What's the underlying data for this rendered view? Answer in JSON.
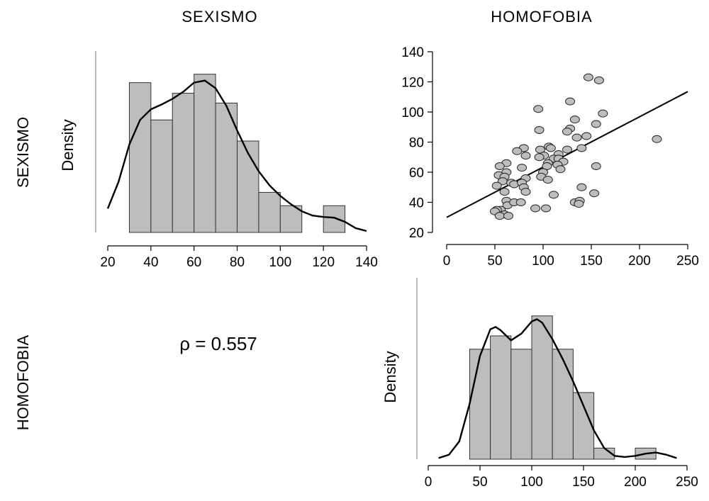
{
  "titles": {
    "col1": "SEXISMO",
    "col2": "HOMOFOBIA",
    "row1": "SEXISMO",
    "row2": "HOMOFOBIA"
  },
  "correlation_label": "ρ = 0.557",
  "chart_data": [
    {
      "type": "histogram",
      "panel": "top-left",
      "variable": "SEXISMO",
      "ylabel": "Density",
      "xlim": [
        20,
        140
      ],
      "xticks": [
        20,
        40,
        60,
        80,
        100,
        120,
        140
      ],
      "bins": [
        {
          "x0": 30,
          "x1": 40,
          "density": 0.0213
        },
        {
          "x0": 40,
          "x1": 50,
          "density": 0.016
        },
        {
          "x0": 50,
          "x1": 60,
          "density": 0.0198
        },
        {
          "x0": 60,
          "x1": 70,
          "density": 0.0225
        },
        {
          "x0": 70,
          "x1": 80,
          "density": 0.0184
        },
        {
          "x0": 80,
          "x1": 90,
          "density": 0.013
        },
        {
          "x0": 90,
          "x1": 100,
          "density": 0.0057
        },
        {
          "x0": 100,
          "x1": 110,
          "density": 0.0038
        },
        {
          "x0": 110,
          "x1": 120,
          "density": 0.0
        },
        {
          "x0": 120,
          "x1": 130,
          "density": 0.0038
        }
      ],
      "ylim": [
        0,
        0.026
      ],
      "density_curve": [
        [
          20,
          0.0034
        ],
        [
          25,
          0.0072
        ],
        [
          30,
          0.0125
        ],
        [
          35,
          0.016
        ],
        [
          40,
          0.0175
        ],
        [
          45,
          0.0182
        ],
        [
          50,
          0.019
        ],
        [
          55,
          0.02
        ],
        [
          60,
          0.0213
        ],
        [
          65,
          0.0216
        ],
        [
          70,
          0.0205
        ],
        [
          75,
          0.018
        ],
        [
          80,
          0.0145
        ],
        [
          85,
          0.0113
        ],
        [
          90,
          0.0087
        ],
        [
          95,
          0.0067
        ],
        [
          100,
          0.0052
        ],
        [
          105,
          0.004
        ],
        [
          110,
          0.003
        ],
        [
          115,
          0.0024
        ],
        [
          120,
          0.0022
        ],
        [
          125,
          0.0021
        ],
        [
          130,
          0.0015
        ],
        [
          135,
          0.0006
        ],
        [
          140,
          0.0002
        ]
      ]
    },
    {
      "type": "scatter",
      "panel": "top-right",
      "x_variable": "HOMOFOBIA",
      "y_variable": "SEXISMO",
      "xlim": [
        0,
        250
      ],
      "ylim": [
        20,
        140
      ],
      "xticks": [
        0,
        50,
        100,
        150,
        200,
        250
      ],
      "yticks": [
        20,
        40,
        60,
        80,
        100,
        120,
        140
      ],
      "regression_line": {
        "intercept": 30,
        "slope": 0.334
      },
      "points": [
        [
          147,
          123
        ],
        [
          158,
          121
        ],
        [
          128,
          107
        ],
        [
          162,
          99
        ],
        [
          95,
          102
        ],
        [
          133,
          95
        ],
        [
          155,
          92
        ],
        [
          96,
          88
        ],
        [
          128,
          89
        ],
        [
          125,
          87
        ],
        [
          145,
          84
        ],
        [
          135,
          83
        ],
        [
          218,
          82
        ],
        [
          80,
          76
        ],
        [
          97,
          75
        ],
        [
          106,
          77
        ],
        [
          108,
          76
        ],
        [
          140,
          76
        ],
        [
          125,
          75
        ],
        [
          73,
          74
        ],
        [
          101,
          71
        ],
        [
          82,
          71
        ],
        [
          96,
          70
        ],
        [
          116,
          72
        ],
        [
          111,
          69
        ],
        [
          116,
          69
        ],
        [
          121,
          67
        ],
        [
          105,
          66
        ],
        [
          115,
          65
        ],
        [
          104,
          64
        ],
        [
          100,
          60
        ],
        [
          118,
          62
        ],
        [
          155,
          64
        ],
        [
          62,
          66
        ],
        [
          78,
          63
        ],
        [
          55,
          64
        ],
        [
          98,
          57
        ],
        [
          105,
          55
        ],
        [
          82,
          56
        ],
        [
          62,
          60
        ],
        [
          54,
          58
        ],
        [
          60,
          57
        ],
        [
          58,
          54
        ],
        [
          52,
          51
        ],
        [
          67,
          53
        ],
        [
          70,
          52
        ],
        [
          78,
          53
        ],
        [
          80,
          50
        ],
        [
          60,
          47
        ],
        [
          82,
          47
        ],
        [
          140,
          50
        ],
        [
          153,
          46
        ],
        [
          111,
          45
        ],
        [
          62,
          41
        ],
        [
          63,
          38
        ],
        [
          70,
          40
        ],
        [
          77,
          40
        ],
        [
          133,
          40
        ],
        [
          138,
          41
        ],
        [
          137,
          39
        ],
        [
          92,
          36
        ],
        [
          103,
          36
        ],
        [
          56,
          35
        ],
        [
          52,
          35
        ],
        [
          50,
          34
        ],
        [
          60,
          32
        ],
        [
          55,
          31
        ],
        [
          64,
          31
        ]
      ]
    },
    {
      "type": "histogram",
      "panel": "bottom-right",
      "variable": "HOMOFOBIA",
      "ylabel": "Density",
      "xlim": [
        0,
        250
      ],
      "xticks": [
        0,
        50,
        100,
        150,
        200,
        250
      ],
      "bins": [
        {
          "x0": 40,
          "x1": 60,
          "density": 0.0099
        },
        {
          "x0": 60,
          "x1": 80,
          "density": 0.0111
        },
        {
          "x0": 80,
          "x1": 100,
          "density": 0.0099
        },
        {
          "x0": 100,
          "x1": 120,
          "density": 0.0129
        },
        {
          "x0": 120,
          "x1": 140,
          "density": 0.0099
        },
        {
          "x0": 140,
          "x1": 160,
          "density": 0.006
        },
        {
          "x0": 160,
          "x1": 180,
          "density": 0.001
        },
        {
          "x0": 180,
          "x1": 200,
          "density": 0.0
        },
        {
          "x0": 200,
          "x1": 220,
          "density": 0.001
        }
      ],
      "ylim": [
        0,
        0.0155
      ],
      "density_curve": [
        [
          10,
          0.0001
        ],
        [
          20,
          0.0004
        ],
        [
          30,
          0.0016
        ],
        [
          40,
          0.005
        ],
        [
          50,
          0.0093
        ],
        [
          60,
          0.0117
        ],
        [
          65,
          0.0119
        ],
        [
          70,
          0.0116
        ],
        [
          80,
          0.0107
        ],
        [
          90,
          0.0113
        ],
        [
          100,
          0.0124
        ],
        [
          105,
          0.0126
        ],
        [
          110,
          0.0123
        ],
        [
          120,
          0.0108
        ],
        [
          130,
          0.009
        ],
        [
          140,
          0.007
        ],
        [
          150,
          0.0048
        ],
        [
          160,
          0.0026
        ],
        [
          170,
          0.001
        ],
        [
          180,
          0.0003
        ],
        [
          190,
          0.0002
        ],
        [
          200,
          0.0003
        ],
        [
          210,
          0.0005
        ],
        [
          220,
          0.0006
        ],
        [
          230,
          0.0004
        ],
        [
          240,
          0.0001
        ]
      ]
    }
  ]
}
